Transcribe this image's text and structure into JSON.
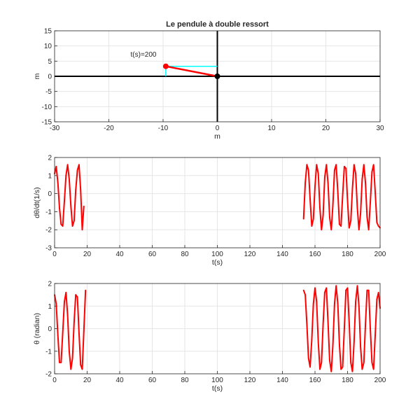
{
  "colors": {
    "series": "#ff0000",
    "projection": "#00ffff",
    "axis_lines": "#000000",
    "grid": "#e6e6e6",
    "frame": "#262626"
  },
  "chart_data": [
    {
      "type": "scatter",
      "title": "Le pendule à double ressort",
      "xlabel": "m",
      "ylabel": "m",
      "xlim": [
        -30,
        30
      ],
      "ylim": [
        -15,
        15
      ],
      "xticks": [
        -30,
        -20,
        -10,
        0,
        10,
        20,
        30
      ],
      "yticks": [
        -15,
        -10,
        -5,
        0,
        5,
        10,
        15
      ],
      "grid": true,
      "annotation": "t(s)=200",
      "pivot": {
        "x": 0,
        "y": 0
      },
      "bob": {
        "x": -9.5,
        "y": 3.3
      },
      "reference_lines": {
        "x": 0,
        "y": 0
      }
    },
    {
      "type": "line",
      "xlabel": "t(s)",
      "ylabel": "dθ/dt(1/s)",
      "xlim": [
        0,
        200
      ],
      "ylim": [
        -3,
        2
      ],
      "xticks": [
        0,
        20,
        40,
        60,
        80,
        100,
        120,
        140,
        160,
        180,
        200
      ],
      "yticks": [
        -3,
        -2,
        -1,
        0,
        1,
        2
      ],
      "grid": true,
      "series": [
        {
          "x": [
            0,
            1,
            2,
            3,
            4,
            5,
            6,
            7,
            8,
            9,
            10,
            11,
            12,
            13,
            14,
            15,
            16,
            17,
            18
          ],
          "y": [
            1.1,
            1.5,
            0.6,
            -0.8,
            -1.7,
            -1.8,
            -0.4,
            1.0,
            1.6,
            0.8,
            -0.7,
            -1.8,
            -1.5,
            0.2,
            1.3,
            1.6,
            0.2,
            -2.0,
            -0.7
          ]
        },
        {
          "x": [
            153,
            154,
            155,
            156,
            157,
            158,
            159,
            160,
            161,
            162,
            163,
            164,
            165,
            166,
            167,
            168,
            169,
            170,
            171,
            172,
            173,
            174,
            175,
            176,
            177,
            178,
            179,
            180,
            181,
            182,
            183,
            184,
            185,
            186,
            187,
            188,
            189,
            190,
            191,
            192,
            193,
            194,
            195,
            196,
            197,
            198,
            199,
            200
          ],
          "y": [
            -1.4,
            0.6,
            1.6,
            1.3,
            -0.3,
            -1.8,
            -1.4,
            0.4,
            1.6,
            1.1,
            -0.8,
            -2.0,
            -1.2,
            0.9,
            1.6,
            0.6,
            -1.3,
            -2.0,
            -0.6,
            1.3,
            1.6,
            0.1,
            -1.7,
            -1.8,
            -0.1,
            1.5,
            1.4,
            -0.4,
            -1.9,
            -1.5,
            0.3,
            1.6,
            1.1,
            -0.8,
            -2.0,
            -1.1,
            0.8,
            1.6,
            0.6,
            -1.3,
            -2.0,
            -0.5,
            1.2,
            1.6,
            0.1,
            -1.6,
            -1.8,
            -1.9
          ]
        }
      ]
    },
    {
      "type": "line",
      "xlabel": "t(s)",
      "ylabel": "θ (radian)",
      "xlim": [
        0,
        200
      ],
      "ylim": [
        -2,
        2
      ],
      "xticks": [
        0,
        20,
        40,
        60,
        80,
        100,
        120,
        140,
        160,
        180,
        200
      ],
      "yticks": [
        -2,
        -1,
        0,
        1,
        2
      ],
      "grid": true,
      "series": [
        {
          "x": [
            0,
            1,
            2,
            3,
            4,
            5,
            6,
            7,
            8,
            9,
            10,
            11,
            12,
            13,
            14,
            15,
            16,
            17,
            18,
            19
          ],
          "y": [
            1.5,
            1.1,
            -0.3,
            -1.5,
            -1.5,
            -0.2,
            1.2,
            1.6,
            0.6,
            -1.0,
            -1.8,
            -1.3,
            0.3,
            1.5,
            1.4,
            -0.2,
            -1.6,
            -1.8,
            -0.1,
            1.7
          ]
        },
        {
          "x": [
            153,
            154,
            155,
            156,
            157,
            158,
            159,
            160,
            161,
            162,
            163,
            164,
            165,
            166,
            167,
            168,
            169,
            170,
            171,
            172,
            173,
            174,
            175,
            176,
            177,
            178,
            179,
            180,
            181,
            182,
            183,
            184,
            185,
            186,
            187,
            188,
            189,
            190,
            191,
            192,
            193,
            194,
            195,
            196,
            197,
            198,
            199,
            200
          ],
          "y": [
            1.7,
            1.5,
            0.2,
            -1.3,
            -1.7,
            -0.5,
            1.1,
            1.8,
            1.2,
            -0.6,
            -1.8,
            -1.5,
            0.2,
            1.6,
            1.8,
            0.3,
            -1.4,
            -1.9,
            -0.7,
            1.1,
            1.9,
            1.1,
            -0.7,
            -1.8,
            -1.7,
            0.0,
            1.7,
            1.8,
            0.3,
            -1.5,
            -1.9,
            -0.6,
            1.2,
            1.9,
            1.0,
            -0.8,
            -1.8,
            -1.5,
            0.2,
            1.7,
            1.7,
            0.0,
            -1.5,
            -1.8,
            -0.3,
            1.3,
            1.6,
            0.9
          ]
        }
      ]
    }
  ]
}
